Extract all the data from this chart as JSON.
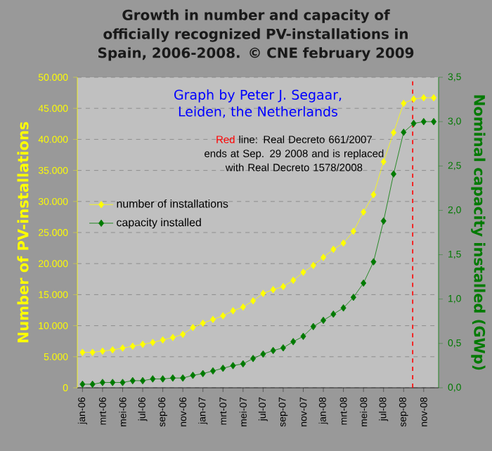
{
  "chart_data": {
    "type": "line",
    "title": "Growth in number and capacity of officially recognized PV-installations in Spain, 2006-2008. © CNE february 2009",
    "ylabel": "Number of PV-installations",
    "y2label": "Nominal capacity installed (GWp)",
    "annotations": [
      "Graph by Peter J. Segaar, Leiden, the Netherlands",
      "Red",
      "line: Real Decreto 661/2007 ends at Sep. 29 2008 and is replaced with Real Decreto 1578/2008"
    ],
    "x": [
      "2006-01",
      "2006-02",
      "2006-03",
      "2006-04",
      "2006-05",
      "2006-06",
      "2006-07",
      "2006-08",
      "2006-09",
      "2006-10",
      "2006-11",
      "2006-12",
      "2007-01",
      "2007-02",
      "2007-03",
      "2007-04",
      "2007-05",
      "2007-06",
      "2007-07",
      "2007-08",
      "2007-09",
      "2007-10",
      "2007-11",
      "2007-12",
      "2008-01",
      "2008-02",
      "2008-03",
      "2008-04",
      "2008-05",
      "2008-06",
      "2008-07",
      "2008-08",
      "2008-09",
      "2008-10",
      "2008-11",
      "2008-12"
    ],
    "series": [
      {
        "name": "number of installations",
        "color": "#ffff00",
        "values": [
          5700,
          5700,
          5900,
          6100,
          6400,
          6700,
          7000,
          7300,
          7700,
          8100,
          8600,
          9700,
          10400,
          11000,
          11600,
          12400,
          13000,
          14000,
          15200,
          15800,
          16300,
          17300,
          18600,
          19700,
          21000,
          22300,
          23300,
          25200,
          28300,
          31100,
          36400,
          41100,
          45800,
          46500,
          46700,
          46700
        ]
      },
      {
        "name": "capacity installed",
        "color": "#007a00",
        "axis": "y2",
        "values": [
          0.04,
          0.04,
          0.06,
          0.06,
          0.06,
          0.08,
          0.08,
          0.1,
          0.1,
          0.11,
          0.11,
          0.14,
          0.16,
          0.19,
          0.22,
          0.25,
          0.27,
          0.33,
          0.38,
          0.42,
          0.45,
          0.52,
          0.58,
          0.69,
          0.76,
          0.83,
          0.9,
          1.02,
          1.18,
          1.42,
          1.88,
          2.41,
          2.88,
          2.98,
          3.0,
          3.0
        ]
      }
    ],
    "xlim": [
      "2005-12-16",
      "2008-12-16"
    ],
    "xticks": [
      {
        "value": "2006-01",
        "label": "jan-06"
      },
      {
        "value": "2006-03",
        "label": "mrt-06"
      },
      {
        "value": "2006-05",
        "label": "mei-06"
      },
      {
        "value": "2006-07",
        "label": "jul-06"
      },
      {
        "value": "2006-09",
        "label": "sep-06"
      },
      {
        "value": "2006-11",
        "label": "nov-06"
      },
      {
        "value": "2007-01",
        "label": "jan-07"
      },
      {
        "value": "2007-03",
        "label": "mrt-07"
      },
      {
        "value": "2007-05",
        "label": "mei-07"
      },
      {
        "value": "2007-07",
        "label": "jul-07"
      },
      {
        "value": "2007-09",
        "label": "sep-07"
      },
      {
        "value": "2007-11",
        "label": "nov-07"
      },
      {
        "value": "2008-01",
        "label": "jan-08"
      },
      {
        "value": "2008-03",
        "label": "mrt-08"
      },
      {
        "value": "2008-05",
        "label": "mei-08"
      },
      {
        "value": "2008-07",
        "label": "jul-08"
      },
      {
        "value": "2008-09",
        "label": "sep-08"
      },
      {
        "value": "2008-11",
        "label": "nov-08"
      }
    ],
    "ylim": [
      0,
      50000
    ],
    "yticks": [
      0,
      {
        "value": 5000,
        "label": "5.000"
      },
      {
        "value": 10000,
        "label": "10.000"
      },
      {
        "value": 15000,
        "label": "15.000"
      },
      {
        "value": 20000,
        "label": "20.000"
      },
      {
        "value": 25000,
        "label": "25.000"
      },
      {
        "value": 30000,
        "label": "30.000"
      },
      {
        "value": 35000,
        "label": "35.000"
      },
      {
        "value": 40000,
        "label": "40.000"
      },
      {
        "value": 45000,
        "label": "45.000"
      },
      {
        "value": 50000,
        "label": "50.000"
      }
    ],
    "y2lim": [
      0,
      3.5
    ],
    "y2ticks": [
      {
        "value": 0,
        "label": "0,0"
      },
      {
        "value": 0.5,
        "label": "0,5"
      },
      {
        "value": 1,
        "label": "1,0"
      },
      {
        "value": 1.5,
        "label": "1,5"
      },
      {
        "value": 2,
        "label": "2,0"
      },
      {
        "value": 2.5,
        "label": "2,5"
      },
      {
        "value": 3,
        "label": "3,0"
      },
      {
        "value": 3.5,
        "label": "3,5"
      }
    ],
    "ref_lines": [
      {
        "axis": "x",
        "value": "2008-09-29",
        "color": "#ff0000",
        "line_style": "dashed"
      }
    ],
    "grid": "y",
    "legend": "left",
    "marker": "diamond",
    "line_style": "solid"
  }
}
